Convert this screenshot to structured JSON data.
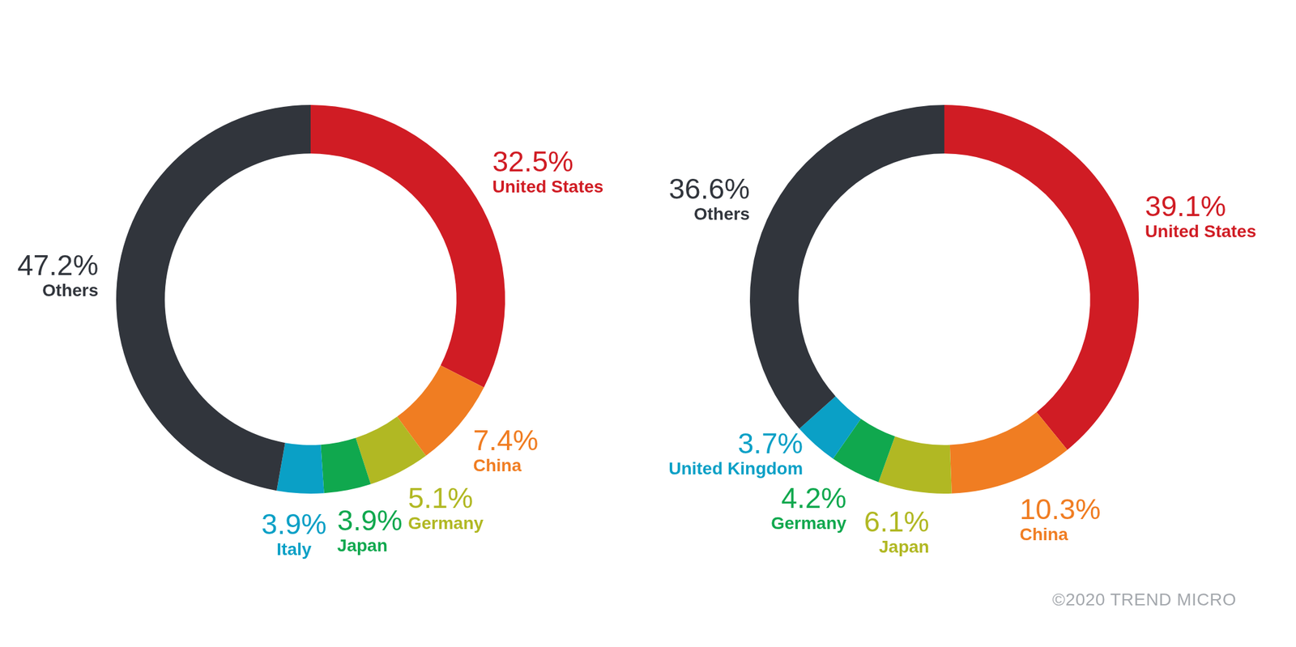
{
  "chart_data": [
    {
      "type": "doughnut",
      "categories": [
        "United States",
        "China",
        "Germany",
        "Japan",
        "Italy",
        "Others"
      ],
      "values": [
        32.5,
        7.4,
        5.1,
        3.9,
        3.9,
        47.2
      ],
      "value_labels": [
        "32.5%",
        "7.4%",
        "5.1%",
        "3.9%",
        "3.9%",
        "47.2%"
      ],
      "colors": [
        "#d01c24",
        "#f07d22",
        "#b1b823",
        "#10a84e",
        "#0aa0c6",
        "#31353c"
      ],
      "data_labels": true
    },
    {
      "type": "doughnut",
      "categories": [
        "United States",
        "China",
        "Japan",
        "Germany",
        "United Kingdom",
        "Others"
      ],
      "values": [
        39.1,
        10.3,
        6.1,
        4.2,
        3.7,
        36.6
      ],
      "value_labels": [
        "39.1%",
        "10.3%",
        "6.1%",
        "4.2%",
        "3.7%",
        "36.6%"
      ],
      "colors": [
        "#d01c24",
        "#f07d22",
        "#b1b823",
        "#10a84e",
        "#0aa0c6",
        "#31353c"
      ],
      "data_labels": true
    }
  ],
  "footer": "©2020 TREND MICRO"
}
